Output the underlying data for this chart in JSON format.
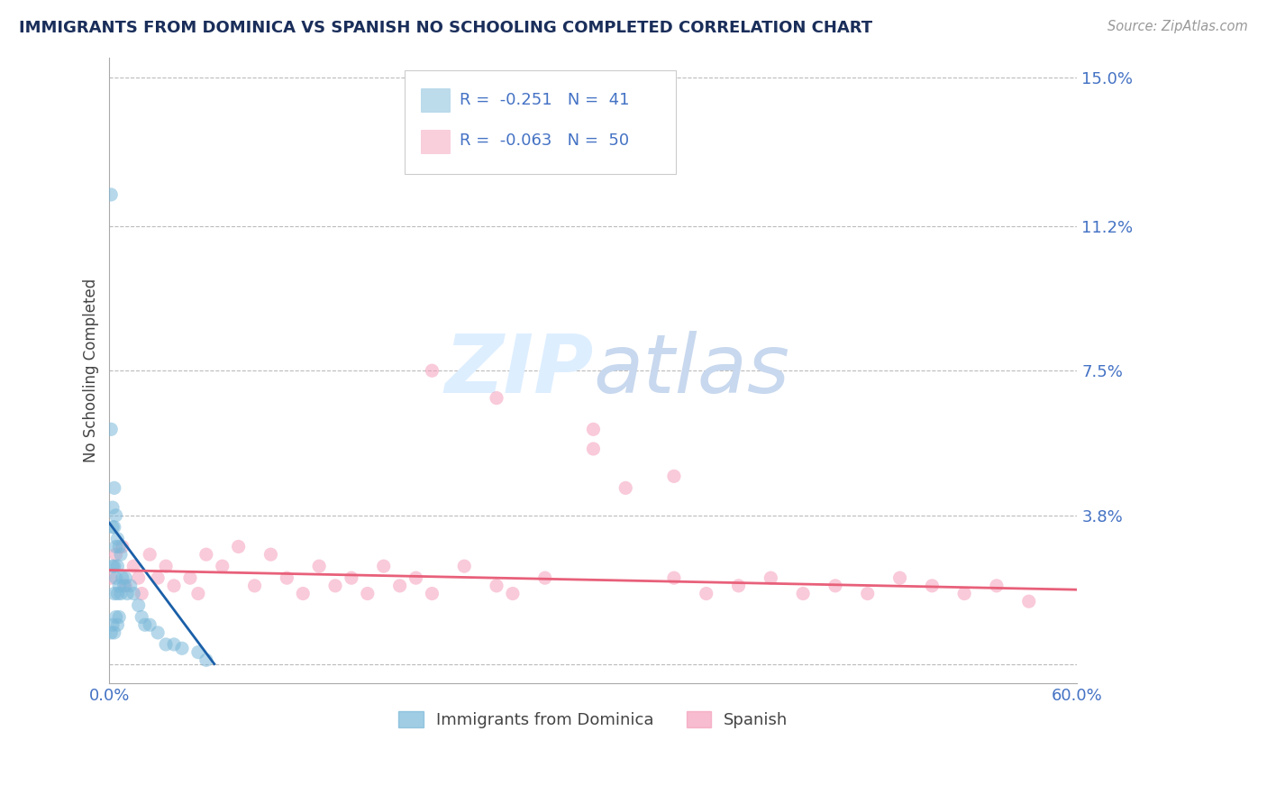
{
  "title": "IMMIGRANTS FROM DOMINICA VS SPANISH NO SCHOOLING COMPLETED CORRELATION CHART",
  "source_text": "Source: ZipAtlas.com",
  "ylabel": "No Schooling Completed",
  "xlim": [
    0.0,
    0.6
  ],
  "ylim": [
    -0.005,
    0.155
  ],
  "yticks": [
    0.0,
    0.038,
    0.075,
    0.112,
    0.15
  ],
  "ytick_labels": [
    "",
    "3.8%",
    "7.5%",
    "11.2%",
    "15.0%"
  ],
  "xticks": [
    0.0,
    0.1,
    0.2,
    0.3,
    0.4,
    0.5,
    0.6
  ],
  "xtick_labels": [
    "0.0%",
    "",
    "",
    "",
    "",
    "",
    "60.0%"
  ],
  "series1_label": "Immigrants from Dominica",
  "series1_R": -0.251,
  "series1_N": 41,
  "series2_label": "Spanish",
  "series2_R": -0.063,
  "series2_N": 50,
  "blue_color": "#7ab8d9",
  "blue_line_color": "#1a5fa8",
  "pink_color": "#f5a0bb",
  "pink_line_color": "#e8607a",
  "background_color": "#ffffff",
  "grid_color": "#bbbbbb",
  "title_color": "#1a2e5a",
  "axis_label_color": "#444444",
  "tick_label_color": "#4472c4",
  "watermark_color": "#ddeeff",
  "blue_scatter_x": [
    0.001,
    0.001,
    0.001,
    0.002,
    0.002,
    0.002,
    0.002,
    0.003,
    0.003,
    0.003,
    0.003,
    0.003,
    0.004,
    0.004,
    0.004,
    0.004,
    0.005,
    0.005,
    0.005,
    0.005,
    0.006,
    0.006,
    0.006,
    0.007,
    0.007,
    0.008,
    0.009,
    0.01,
    0.011,
    0.013,
    0.015,
    0.018,
    0.02,
    0.022,
    0.025,
    0.03,
    0.035,
    0.04,
    0.045,
    0.055,
    0.06
  ],
  "blue_scatter_y": [
    0.12,
    0.06,
    0.008,
    0.04,
    0.035,
    0.025,
    0.01,
    0.045,
    0.035,
    0.025,
    0.018,
    0.008,
    0.038,
    0.03,
    0.022,
    0.012,
    0.032,
    0.025,
    0.018,
    0.01,
    0.03,
    0.02,
    0.012,
    0.028,
    0.018,
    0.022,
    0.02,
    0.022,
    0.018,
    0.02,
    0.018,
    0.015,
    0.012,
    0.01,
    0.01,
    0.008,
    0.005,
    0.005,
    0.004,
    0.003,
    0.001
  ],
  "pink_scatter_x": [
    0.001,
    0.004,
    0.008,
    0.01,
    0.015,
    0.018,
    0.02,
    0.025,
    0.03,
    0.035,
    0.04,
    0.05,
    0.055,
    0.06,
    0.07,
    0.08,
    0.09,
    0.1,
    0.11,
    0.12,
    0.13,
    0.14,
    0.15,
    0.16,
    0.17,
    0.18,
    0.19,
    0.2,
    0.22,
    0.24,
    0.25,
    0.27,
    0.3,
    0.32,
    0.35,
    0.37,
    0.39,
    0.41,
    0.43,
    0.45,
    0.47,
    0.49,
    0.51,
    0.53,
    0.55,
    0.57,
    0.2,
    0.24,
    0.3,
    0.35
  ],
  "pink_scatter_y": [
    0.022,
    0.028,
    0.03,
    0.02,
    0.025,
    0.022,
    0.018,
    0.028,
    0.022,
    0.025,
    0.02,
    0.022,
    0.018,
    0.028,
    0.025,
    0.03,
    0.02,
    0.028,
    0.022,
    0.018,
    0.025,
    0.02,
    0.022,
    0.018,
    0.025,
    0.02,
    0.022,
    0.018,
    0.025,
    0.02,
    0.018,
    0.022,
    0.06,
    0.045,
    0.022,
    0.018,
    0.02,
    0.022,
    0.018,
    0.02,
    0.018,
    0.022,
    0.02,
    0.018,
    0.02,
    0.016,
    0.075,
    0.068,
    0.055,
    0.048
  ],
  "blue_line_x": [
    0.0,
    0.065
  ],
  "blue_line_y": [
    0.036,
    0.0
  ],
  "pink_line_x": [
    0.0,
    0.6
  ],
  "pink_line_y": [
    0.024,
    0.019
  ]
}
